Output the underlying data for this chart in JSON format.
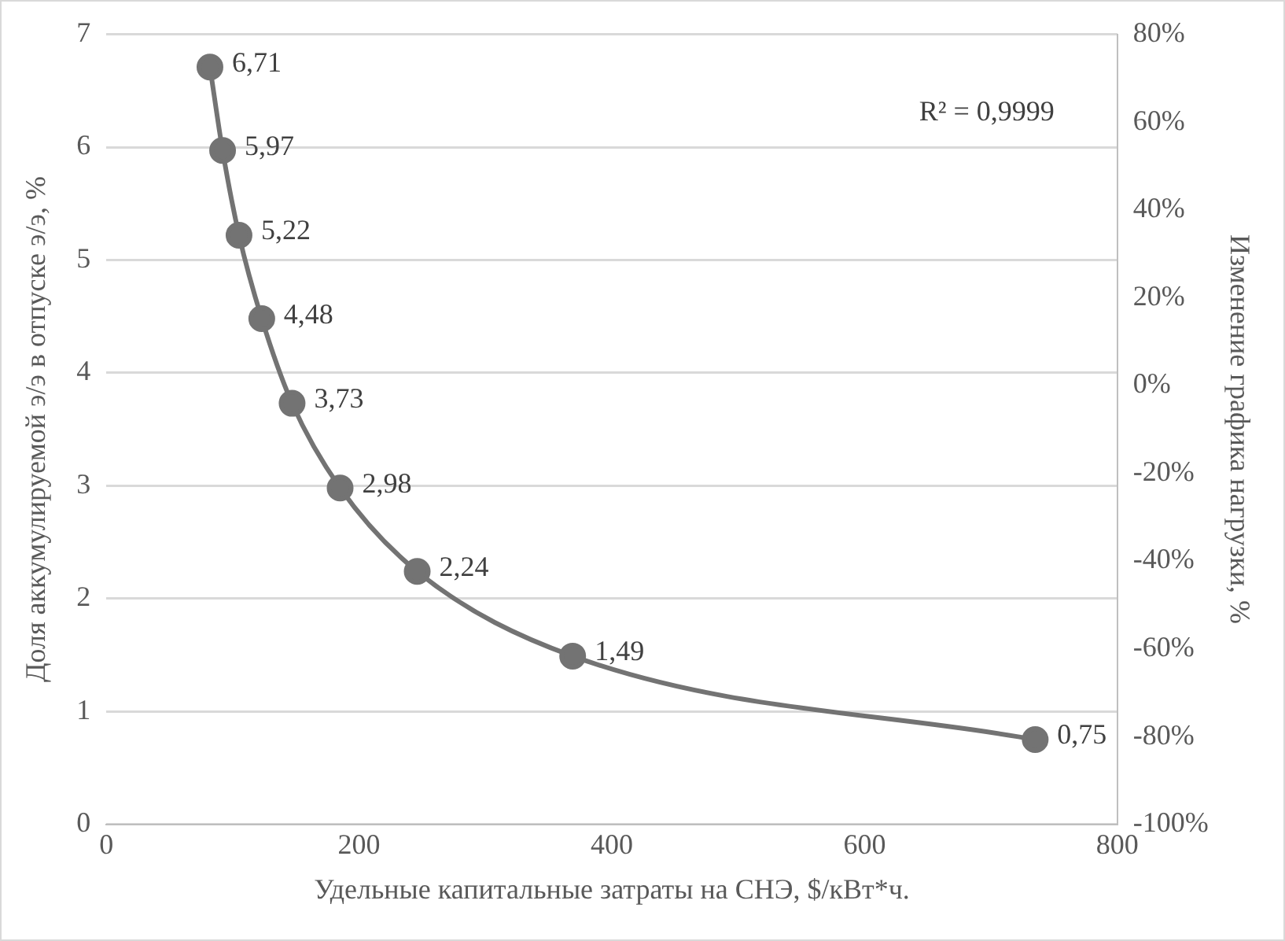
{
  "chart_data": {
    "type": "line",
    "xlabel": "Удельные капитальные затраты на СНЭ, $/кВт*ч.",
    "ylabel": "Доля аккумулируемой э/э в отпуске э/э, %",
    "y2label": "Изменение графика нагрузки, %",
    "x": [
      82,
      92,
      105,
      123,
      147,
      185,
      246,
      369,
      735
    ],
    "series": [
      {
        "color": "#737373",
        "values": [
          6.71,
          5.97,
          5.22,
          4.48,
          3.73,
          2.98,
          2.24,
          1.49,
          0.75
        ],
        "value_labels": [
          "6,71",
          "5,97",
          "5,22",
          "4,48",
          "3,73",
          "2,98",
          "2,24",
          "1,49",
          "0,75"
        ]
      }
    ],
    "xlim": [
      0,
      800
    ],
    "xticks": [
      0,
      200,
      400,
      600,
      800
    ],
    "ylim": [
      0,
      7
    ],
    "yticks": [
      0,
      1,
      2,
      3,
      4,
      5,
      6,
      7
    ],
    "y2lim": [
      -100,
      80
    ],
    "y2ticks": [
      {
        "value": -100,
        "label": "-100%"
      },
      {
        "value": -80,
        "label": "-80%"
      },
      {
        "value": -60,
        "label": "-60%"
      },
      {
        "value": -40,
        "label": "-40%"
      },
      {
        "value": -20,
        "label": "-20%"
      },
      {
        "value": 0,
        "label": "0%"
      },
      {
        "value": 20,
        "label": "20%"
      },
      {
        "value": 40,
        "label": "40%"
      },
      {
        "value": 60,
        "label": "60%"
      },
      {
        "value": 80,
        "label": "80%"
      }
    ],
    "annotations": [
      "R² = 0,9999"
    ],
    "grid": "y",
    "legend": false,
    "marker": "circle",
    "line_style": "solid"
  }
}
